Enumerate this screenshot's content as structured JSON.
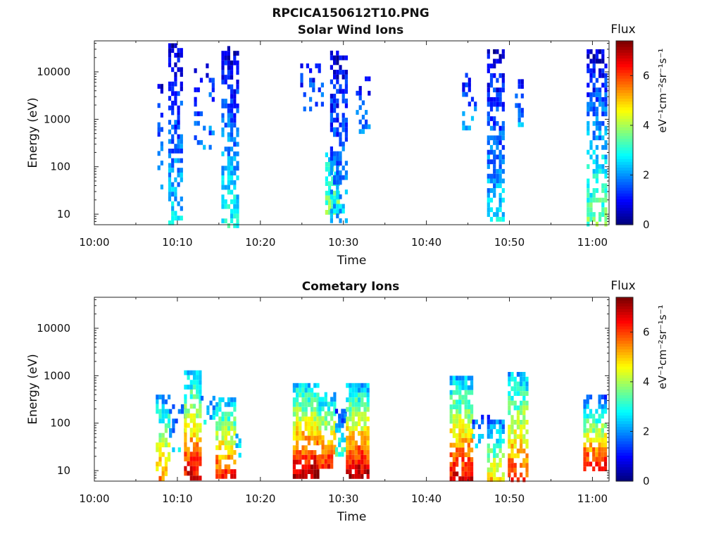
{
  "figure": {
    "main_title": "RPCICA150612T10.PNG"
  },
  "chart_data": [
    {
      "type": "heatmap",
      "title": "Solar Wind Ions",
      "xlabel": "Time",
      "ylabel": "Energy (eV)",
      "y_scale": "log",
      "x_range_minutes": [
        0,
        62
      ],
      "y_range_eV": [
        6,
        45000
      ],
      "x_ticks": [
        "10:00",
        "10:10",
        "10:20",
        "10:30",
        "10:40",
        "10:50",
        "11:00"
      ],
      "x_tick_minutes": [
        0,
        10,
        20,
        30,
        40,
        50,
        60
      ],
      "y_ticks": [
        "10",
        "100",
        "1000",
        "10000"
      ],
      "y_tick_values": [
        10,
        100,
        1000,
        10000
      ],
      "colorbar": {
        "label": "Flux",
        "unit": "eV⁻¹cm⁻²sr⁻¹s⁻¹",
        "range": [
          0,
          7.4
        ],
        "ticks": [
          "0",
          "2",
          "4",
          "6"
        ],
        "tick_values": [
          0,
          2,
          4,
          6
        ]
      },
      "bursts": [
        {
          "t_start": 7.6,
          "t_end": 8.2,
          "e_low": 40,
          "e_high": 7000,
          "flux_low": 2.5,
          "flux_high": 0.6,
          "density": 0.35
        },
        {
          "t_start": 8.9,
          "t_end": 10.6,
          "e_low": 6,
          "e_high": 40000,
          "flux_low": 2.6,
          "flux_high": 0.6,
          "density": 0.6
        },
        {
          "t_start": 12.0,
          "t_end": 14.2,
          "e_low": 200,
          "e_high": 15000,
          "flux_low": 2.0,
          "flux_high": 1.0,
          "density": 0.18
        },
        {
          "t_start": 15.3,
          "t_end": 17.2,
          "e_low": 6,
          "e_high": 35000,
          "flux_low": 3.0,
          "flux_high": 0.6,
          "density": 0.6
        },
        {
          "t_start": 24.8,
          "t_end": 27.5,
          "e_low": 1000,
          "e_high": 15000,
          "flux_low": 1.8,
          "flux_high": 1.0,
          "density": 0.25
        },
        {
          "t_start": 27.8,
          "t_end": 29.5,
          "e_low": 10,
          "e_high": 200,
          "flux_low": 3.8,
          "flux_high": 2.6,
          "density": 0.7
        },
        {
          "t_start": 28.4,
          "t_end": 30.5,
          "e_low": 8,
          "e_high": 28000,
          "flux_low": 2.4,
          "flux_high": 0.6,
          "density": 0.6
        },
        {
          "t_start": 31.5,
          "t_end": 33.0,
          "e_low": 500,
          "e_high": 8000,
          "flux_low": 2.0,
          "flux_high": 1.0,
          "density": 0.3
        },
        {
          "t_start": 44.3,
          "t_end": 45.8,
          "e_low": 600,
          "e_high": 12000,
          "flux_low": 2.0,
          "flux_high": 1.0,
          "density": 0.25
        },
        {
          "t_start": 47.3,
          "t_end": 49.2,
          "e_low": 7,
          "e_high": 30000,
          "flux_low": 2.6,
          "flux_high": 0.6,
          "density": 0.6
        },
        {
          "t_start": 50.3,
          "t_end": 51.5,
          "e_low": 700,
          "e_high": 7000,
          "flux_low": 2.2,
          "flux_high": 1.0,
          "density": 0.35
        },
        {
          "t_start": 59.3,
          "t_end": 61.6,
          "e_low": 6,
          "e_high": 30000,
          "flux_low": 3.6,
          "flux_high": 0.6,
          "density": 0.6
        }
      ]
    },
    {
      "type": "heatmap",
      "title": "Cometary Ions",
      "xlabel": "Time",
      "ylabel": "Energy (eV)",
      "y_scale": "log",
      "x_range_minutes": [
        0,
        62
      ],
      "y_range_eV": [
        6,
        45000
      ],
      "x_ticks": [
        "10:00",
        "10:10",
        "10:20",
        "10:30",
        "10:40",
        "10:50",
        "11:00"
      ],
      "x_tick_minutes": [
        0,
        10,
        20,
        30,
        40,
        50,
        60
      ],
      "y_ticks": [
        "10",
        "100",
        "1000",
        "10000"
      ],
      "y_tick_values": [
        10,
        100,
        1000,
        10000
      ],
      "colorbar": {
        "label": "Flux",
        "unit": "eV⁻¹cm⁻²sr⁻¹s⁻¹",
        "range": [
          0,
          7.4
        ],
        "ticks": [
          "0",
          "2",
          "4",
          "6"
        ],
        "tick_values": [
          0,
          2,
          4,
          6
        ]
      },
      "bursts": [
        {
          "t_start": 7.4,
          "t_end": 9.0,
          "e_low": 7,
          "e_high": 400,
          "flux_low": 5.6,
          "flux_high": 2.0,
          "density": 0.65
        },
        {
          "t_start": 9.0,
          "t_end": 10.8,
          "e_low": 30,
          "e_high": 250,
          "flux_low": 2.5,
          "flux_high": 1.2,
          "density": 0.3
        },
        {
          "t_start": 10.8,
          "t_end": 12.8,
          "e_low": 7,
          "e_high": 1300,
          "flux_low": 6.8,
          "flux_high": 2.3,
          "density": 0.75
        },
        {
          "t_start": 12.8,
          "t_end": 14.5,
          "e_low": 100,
          "e_high": 600,
          "flux_low": 2.5,
          "flux_high": 1.5,
          "density": 0.25
        },
        {
          "t_start": 14.6,
          "t_end": 17.0,
          "e_low": 7,
          "e_high": 350,
          "flux_low": 6.5,
          "flux_high": 2.3,
          "density": 0.75
        },
        {
          "t_start": 17.0,
          "t_end": 17.6,
          "e_low": 20,
          "e_high": 60,
          "flux_low": 3.0,
          "flux_high": 2.5,
          "density": 0.4
        },
        {
          "t_start": 23.9,
          "t_end": 27.0,
          "e_low": 7,
          "e_high": 700,
          "flux_low": 7.3,
          "flux_high": 2.5,
          "density": 0.85
        },
        {
          "t_start": 27.0,
          "t_end": 29.0,
          "e_low": 12,
          "e_high": 450,
          "flux_low": 6.5,
          "flux_high": 2.3,
          "density": 0.75
        },
        {
          "t_start": 29.0,
          "t_end": 30.3,
          "e_low": 20,
          "e_high": 200,
          "flux_low": 3.5,
          "flux_high": 1.3,
          "density": 0.45
        },
        {
          "t_start": 30.3,
          "t_end": 33.0,
          "e_low": 7,
          "e_high": 700,
          "flux_low": 7.3,
          "flux_high": 2.3,
          "density": 0.85
        },
        {
          "t_start": 42.8,
          "t_end": 45.5,
          "e_low": 7,
          "e_high": 1000,
          "flux_low": 6.8,
          "flux_high": 2.3,
          "density": 0.75
        },
        {
          "t_start": 45.5,
          "t_end": 46.8,
          "e_low": 30,
          "e_high": 150,
          "flux_low": 2.5,
          "flux_high": 1.5,
          "density": 0.25
        },
        {
          "t_start": 47.3,
          "t_end": 49.2,
          "e_low": 7,
          "e_high": 150,
          "flux_low": 5.0,
          "flux_high": 1.5,
          "density": 0.6
        },
        {
          "t_start": 49.8,
          "t_end": 52.0,
          "e_low": 7,
          "e_high": 1200,
          "flux_low": 6.2,
          "flux_high": 2.3,
          "density": 0.7
        },
        {
          "t_start": 58.9,
          "t_end": 61.6,
          "e_low": 12,
          "e_high": 400,
          "flux_low": 6.8,
          "flux_high": 1.5,
          "density": 0.75
        }
      ]
    }
  ]
}
